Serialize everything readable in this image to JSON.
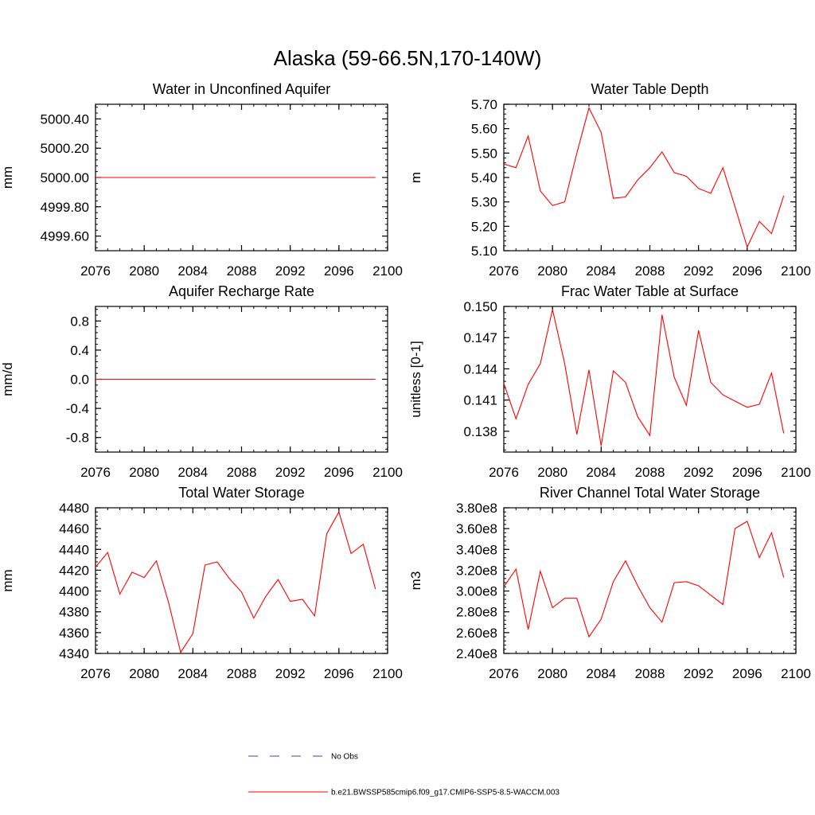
{
  "title": "Alaska (59-66.5N,170-140W)",
  "colors": {
    "model_line": "#ff0000",
    "obs_line": "#4040b0",
    "axis": "#000000"
  },
  "legend": {
    "obs_label": "No Obs",
    "model_label": "b.e21.BWSSP585cmip6.f09_g17.CMIP6-SSP5-8.5-WACCM.003"
  },
  "chart_data": [
    {
      "type": "line",
      "title": "Water in Unconfined Aquifer",
      "ylabel": "mm",
      "xlim": [
        2076,
        2100
      ],
      "ylim": [
        4999.5,
        5000.5
      ],
      "yticks": [
        4999.6,
        4999.8,
        5000.0,
        5000.2,
        5000.4
      ],
      "ytick_labels": [
        "4999.60",
        "4999.80",
        "5000.00",
        "5000.20",
        "5000.40"
      ],
      "yminor": 0.04,
      "xticks": [
        2076,
        2080,
        2084,
        2088,
        2092,
        2096,
        2100
      ],
      "x": [
        2076,
        2077,
        2078,
        2079,
        2080,
        2081,
        2082,
        2083,
        2084,
        2085,
        2086,
        2087,
        2088,
        2089,
        2090,
        2091,
        2092,
        2093,
        2094,
        2095,
        2096,
        2097,
        2098,
        2099
      ],
      "values": [
        5000,
        5000,
        5000,
        5000,
        5000,
        5000,
        5000,
        5000,
        5000,
        5000,
        5000,
        5000,
        5000,
        5000,
        5000,
        5000,
        5000,
        5000,
        5000,
        5000,
        5000,
        5000,
        5000,
        5000
      ]
    },
    {
      "type": "line",
      "title": "Water Table Depth",
      "ylabel": "m",
      "xlim": [
        2076,
        2100
      ],
      "ylim": [
        5.1,
        5.7
      ],
      "yticks": [
        5.1,
        5.2,
        5.3,
        5.4,
        5.5,
        5.6,
        5.7
      ],
      "ytick_labels": [
        "5.10",
        "5.20",
        "5.30",
        "5.40",
        "5.50",
        "5.60",
        "5.70"
      ],
      "yminor": 0.02,
      "xticks": [
        2076,
        2080,
        2084,
        2088,
        2092,
        2096,
        2100
      ],
      "x": [
        2076,
        2077,
        2078,
        2079,
        2080,
        2081,
        2082,
        2083,
        2084,
        2085,
        2086,
        2087,
        2088,
        2089,
        2090,
        2091,
        2092,
        2093,
        2094,
        2095,
        2096,
        2097,
        2098,
        2099
      ],
      "values": [
        5.455,
        5.44,
        5.57,
        5.345,
        5.285,
        5.3,
        5.5,
        5.685,
        5.585,
        5.315,
        5.32,
        5.39,
        5.44,
        5.505,
        5.42,
        5.405,
        5.355,
        5.335,
        5.44,
        5.28,
        5.115,
        5.22,
        5.17,
        5.325
      ]
    },
    {
      "type": "line",
      "title": "Aquifer Recharge Rate",
      "ylabel": "mm/d",
      "xlim": [
        2076,
        2100
      ],
      "ylim": [
        -1.0,
        1.0
      ],
      "yticks": [
        -0.8,
        -0.4,
        0.0,
        0.4,
        0.8
      ],
      "ytick_labels": [
        "-0.8",
        "-0.4",
        "0.0",
        "0.4",
        "0.8"
      ],
      "yminor": 0.08,
      "xticks": [
        2076,
        2080,
        2084,
        2088,
        2092,
        2096,
        2100
      ],
      "x": [
        2076,
        2077,
        2078,
        2079,
        2080,
        2081,
        2082,
        2083,
        2084,
        2085,
        2086,
        2087,
        2088,
        2089,
        2090,
        2091,
        2092,
        2093,
        2094,
        2095,
        2096,
        2097,
        2098,
        2099
      ],
      "values": [
        0,
        0,
        0,
        0,
        0,
        0,
        0,
        0,
        0,
        0,
        0,
        0,
        0,
        0,
        0,
        0,
        0,
        0,
        0,
        0,
        0,
        0,
        0,
        0
      ]
    },
    {
      "type": "line",
      "title": "Frac Water Table at Surface",
      "ylabel": "unitless [0-1]",
      "xlim": [
        2076,
        2100
      ],
      "ylim": [
        0.136,
        0.15
      ],
      "yticks": [
        0.138,
        0.141,
        0.144,
        0.147,
        0.15
      ],
      "ytick_labels": [
        "0.138",
        "0.141",
        "0.144",
        "0.147",
        "0.150"
      ],
      "yminor": 0.0006,
      "xticks": [
        2076,
        2080,
        2084,
        2088,
        2092,
        2096,
        2100
      ],
      "x": [
        2076,
        2077,
        2078,
        2079,
        2080,
        2081,
        2082,
        2083,
        2084,
        2085,
        2086,
        2087,
        2088,
        2089,
        2090,
        2091,
        2092,
        2093,
        2094,
        2095,
        2096,
        2097,
        2098,
        2099
      ],
      "values": [
        0.1426,
        0.1392,
        0.1425,
        0.1445,
        0.1497,
        0.1445,
        0.1377,
        0.1439,
        0.1366,
        0.1438,
        0.1427,
        0.1394,
        0.1376,
        0.1492,
        0.1432,
        0.1405,
        0.1477,
        0.1427,
        0.1415,
        0.1409,
        0.1403,
        0.1406,
        0.1436,
        0.1378
      ]
    },
    {
      "type": "line",
      "title": "Total Water Storage",
      "ylabel": "mm",
      "xlim": [
        2076,
        2100
      ],
      "ylim": [
        4340,
        4480
      ],
      "yticks": [
        4340,
        4360,
        4380,
        4400,
        4420,
        4440,
        4460,
        4480
      ],
      "ytick_labels": [
        "4340",
        "4360",
        "4380",
        "4400",
        "4420",
        "4440",
        "4460",
        "4480"
      ],
      "yminor": 4,
      "xticks": [
        2076,
        2080,
        2084,
        2088,
        2092,
        2096,
        2100
      ],
      "x": [
        2076,
        2077,
        2078,
        2079,
        2080,
        2081,
        2082,
        2083,
        2084,
        2085,
        2086,
        2087,
        2088,
        2089,
        2090,
        2091,
        2092,
        2093,
        2094,
        2095,
        2096,
        2097,
        2098,
        2099
      ],
      "values": [
        4423,
        4437,
        4397,
        4418,
        4413,
        4429,
        4389,
        4341,
        4359,
        4425,
        4428,
        4412,
        4399,
        4374,
        4395,
        4411,
        4390,
        4392,
        4376,
        4455,
        4476,
        4436,
        4445,
        4402
      ]
    },
    {
      "type": "line",
      "title": "River Channel Total Water Storage",
      "ylabel": "m3",
      "xlim": [
        2076,
        2100
      ],
      "ylim": [
        240000000.0,
        380000000.0
      ],
      "yticks": [
        240000000.0,
        260000000.0,
        280000000.0,
        300000000.0,
        320000000.0,
        340000000.0,
        360000000.0,
        380000000.0
      ],
      "ytick_labels": [
        "2.40e8",
        "2.60e8",
        "2.80e8",
        "3.00e8",
        "3.20e8",
        "3.40e8",
        "3.60e8",
        "3.80e8"
      ],
      "yminor": 4000000.0,
      "xticks": [
        2076,
        2080,
        2084,
        2088,
        2092,
        2096,
        2100
      ],
      "x": [
        2076,
        2077,
        2078,
        2079,
        2080,
        2081,
        2082,
        2083,
        2084,
        2085,
        2086,
        2087,
        2088,
        2089,
        2090,
        2091,
        2092,
        2093,
        2094,
        2095,
        2096,
        2097,
        2098,
        2099
      ],
      "values": [
        304000000.0,
        321000000.0,
        263000000.0,
        319000000.0,
        284000000.0,
        293000000.0,
        293000000.0,
        256000000.0,
        273000000.0,
        309000000.0,
        329000000.0,
        305000000.0,
        284000000.0,
        270000000.0,
        308000000.0,
        309000000.0,
        305000000.0,
        296000000.0,
        287000000.0,
        360000000.0,
        367000000.0,
        332000000.0,
        356000000.0,
        313000000.0
      ]
    }
  ]
}
